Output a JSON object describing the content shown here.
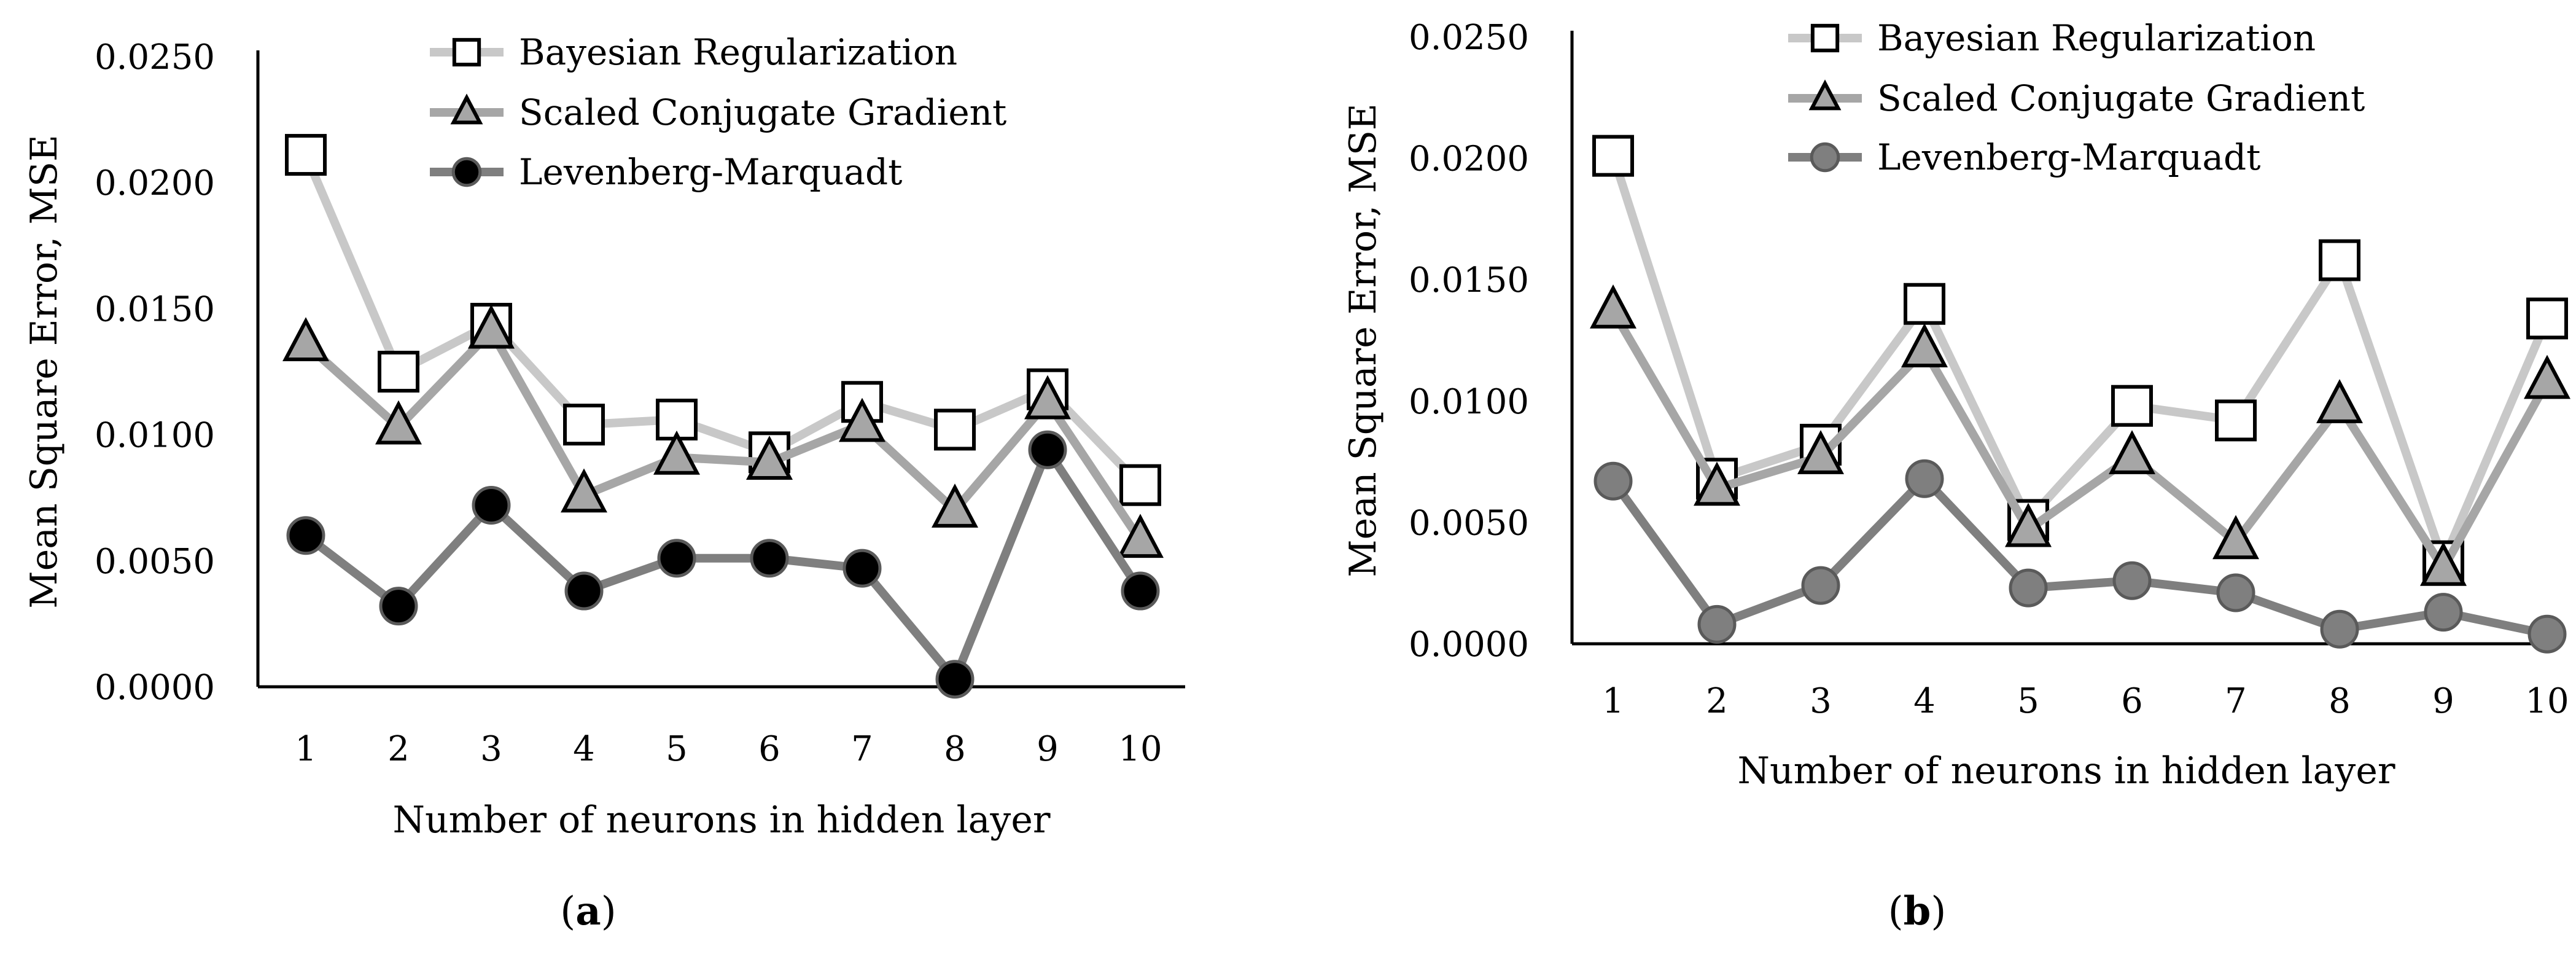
{
  "chart_data": [
    {
      "type": "line",
      "panel_label": "a",
      "categories": [
        "1",
        "2",
        "3",
        "4",
        "5",
        "6",
        "7",
        "8",
        "9",
        "10"
      ],
      "xlabel": "Number of neurons in hidden layer",
      "ylabel": "Mean Square Error, MSE",
      "ylim": [
        0,
        0.025
      ],
      "yticks": [
        "0.0000",
        "0.0050",
        "0.0100",
        "0.0150",
        "0.0200",
        "0.0250"
      ],
      "grid": false,
      "legend_position": "top",
      "series": [
        {
          "name": "Bayesian Regularization",
          "marker": "square",
          "color": "#c8c8c8",
          "values": [
            0.0211,
            0.0125,
            0.0144,
            0.0104,
            0.0106,
            0.0093,
            0.0113,
            0.0102,
            0.0118,
            0.008
          ]
        },
        {
          "name": "Scaled Conjugate Gradient",
          "marker": "triangle",
          "color": "#a6a6a6",
          "values": [
            0.0136,
            0.0103,
            0.0141,
            0.0076,
            0.0091,
            0.0089,
            0.0104,
            0.007,
            0.0113,
            0.0058
          ]
        },
        {
          "name": "Levenberg-Marquadt",
          "marker": "circle",
          "color": "#7f7f7f",
          "values": [
            0.006,
            0.0032,
            0.0072,
            0.0038,
            0.0051,
            0.0051,
            0.0047,
            0.0003,
            0.0094,
            0.0038
          ]
        }
      ]
    },
    {
      "type": "line",
      "panel_label": "b",
      "categories": [
        "1",
        "2",
        "3",
        "4",
        "5",
        "6",
        "7",
        "8",
        "9",
        "10"
      ],
      "xlabel": "Number of neurons in hidden layer",
      "ylabel": "Mean Square Error, MSE",
      "ylim": [
        0,
        0.025
      ],
      "yticks": [
        "0.0000",
        "0.0050",
        "0.0100",
        "0.0150",
        "0.0200",
        "0.0250"
      ],
      "grid": false,
      "legend_position": "top",
      "series": [
        {
          "name": "Bayesian Regularization",
          "marker": "square",
          "color": "#c8c8c8",
          "values": [
            0.0201,
            0.0068,
            0.0082,
            0.014,
            0.0051,
            0.0098,
            0.0092,
            0.0158,
            0.0034,
            0.0134
          ]
        },
        {
          "name": "Scaled Conjugate Gradient",
          "marker": "triangle",
          "color": "#a6a6a6",
          "values": [
            0.0137,
            0.0064,
            0.0077,
            0.0121,
            0.0047,
            0.0077,
            0.0042,
            0.0098,
            0.0031,
            0.0108
          ]
        },
        {
          "name": "Levenberg-Marquadt",
          "marker": "circle",
          "color": "#7f7f7f",
          "values": [
            0.0067,
            0.0008,
            0.0024,
            0.0068,
            0.0023,
            0.0026,
            0.0021,
            0.0006,
            0.0013,
            0.0004
          ]
        }
      ]
    }
  ]
}
